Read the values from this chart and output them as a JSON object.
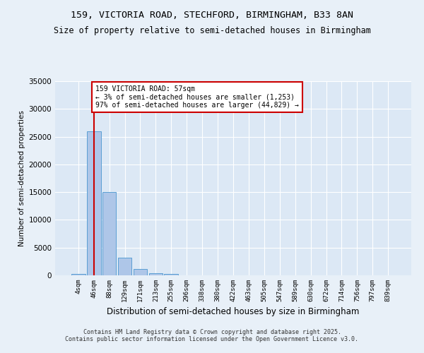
{
  "title_line1": "159, VICTORIA ROAD, STECHFORD, BIRMINGHAM, B33 8AN",
  "title_line2": "Size of property relative to semi-detached houses in Birmingham",
  "xlabel": "Distribution of semi-detached houses by size in Birmingham",
  "ylabel": "Number of semi-detached properties",
  "bar_labels": [
    "4sqm",
    "46sqm",
    "88sqm",
    "129sqm",
    "171sqm",
    "213sqm",
    "255sqm",
    "296sqm",
    "338sqm",
    "380sqm",
    "422sqm",
    "463sqm",
    "505sqm",
    "547sqm",
    "589sqm",
    "630sqm",
    "672sqm",
    "714sqm",
    "756sqm",
    "797sqm",
    "839sqm"
  ],
  "bar_values": [
    300,
    26000,
    15000,
    3200,
    1100,
    400,
    200,
    0,
    0,
    0,
    0,
    0,
    0,
    0,
    0,
    0,
    0,
    0,
    0,
    0,
    0
  ],
  "bar_color": "#aec6e8",
  "bar_edge_color": "#5a9fd4",
  "vline_x": 1.0,
  "vline_color": "#cc0000",
  "annotation_title": "159 VICTORIA ROAD: 57sqm",
  "annotation_line2": "← 3% of semi-detached houses are smaller (1,253)",
  "annotation_line3": "97% of semi-detached houses are larger (44,829) →",
  "annotation_box_color": "#cc0000",
  "ylim": [
    0,
    35000
  ],
  "yticks": [
    0,
    5000,
    10000,
    15000,
    20000,
    25000,
    30000,
    35000
  ],
  "footer_line1": "Contains HM Land Registry data © Crown copyright and database right 2025.",
  "footer_line2": "Contains public sector information licensed under the Open Government Licence v3.0.",
  "bg_color": "#e8f0f8",
  "plot_bg_color": "#dce8f5",
  "title_fontsize": 9.5,
  "subtitle_fontsize": 8.5
}
